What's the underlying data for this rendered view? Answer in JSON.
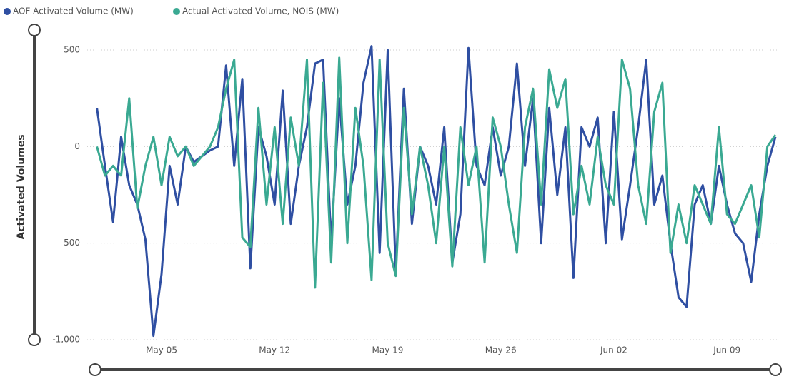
{
  "chart_data": {
    "type": "line",
    "y_label": "Activated Volumes",
    "categories": [
      null,
      null,
      null,
      null,
      null,
      null,
      null,
      null,
      "May 05",
      null,
      null,
      null,
      null,
      null,
      null,
      null,
      null,
      null,
      null,
      null,
      null,
      null,
      "May 12",
      null,
      null,
      null,
      null,
      null,
      null,
      null,
      null,
      null,
      null,
      null,
      null,
      null,
      "May 19",
      null,
      null,
      null,
      null,
      null,
      null,
      null,
      null,
      null,
      null,
      null,
      null,
      null,
      "May 26",
      null,
      null,
      null,
      null,
      null,
      null,
      null,
      null,
      null,
      null,
      null,
      null,
      null,
      "Jun 02",
      null,
      null,
      null,
      null,
      null,
      null,
      null,
      null,
      null,
      null,
      null,
      null,
      null,
      "Jun 09",
      null,
      null,
      null,
      null,
      null,
      null
    ],
    "series": [
      {
        "name": "AOF Activated Volume (MW)",
        "color": "#2f4fa2",
        "values": [
          200,
          -100,
          -390,
          50,
          -200,
          -300,
          -480,
          -980,
          -660,
          -100,
          -300,
          0,
          -80,
          -50,
          -20,
          0,
          420,
          -100,
          350,
          -630,
          100,
          -50,
          -300,
          290,
          -400,
          -100,
          100,
          430,
          450,
          -500,
          250,
          -300,
          -100,
          330,
          520,
          -550,
          500,
          -650,
          300,
          -400,
          0,
          -100,
          -300,
          100,
          -600,
          -350,
          510,
          -100,
          -200,
          100,
          -150,
          0,
          430,
          -100,
          250,
          -500,
          200,
          -250,
          100,
          -680,
          100,
          0,
          150,
          -500,
          180,
          -480,
          -200,
          100,
          450,
          -300,
          -150,
          -500,
          -780,
          -830,
          -300,
          -200,
          -400,
          -100,
          -300,
          -450,
          -500,
          -700,
          -350,
          -100,
          50
        ]
      },
      {
        "name": "Actual Activated Volume, NOIS (MW)",
        "color": "#3aa992",
        "values": [
          0,
          -150,
          -100,
          -150,
          250,
          -320,
          -100,
          50,
          -200,
          50,
          -50,
          0,
          -100,
          -50,
          0,
          100,
          300,
          450,
          -470,
          -520,
          200,
          -300,
          100,
          -400,
          150,
          -100,
          450,
          -730,
          330,
          -600,
          460,
          -500,
          200,
          -100,
          -690,
          450,
          -500,
          -670,
          200,
          -350,
          0,
          -200,
          -500,
          0,
          -620,
          100,
          -200,
          0,
          -600,
          150,
          0,
          -300,
          -550,
          100,
          300,
          -300,
          400,
          200,
          350,
          -350,
          -100,
          -300,
          50,
          -200,
          -300,
          450,
          300,
          -200,
          -400,
          180,
          330,
          -550,
          -300,
          -500,
          -200,
          -300,
          -400,
          100,
          -350,
          -400,
          -300,
          -200,
          -470,
          0,
          60
        ]
      }
    ],
    "ylim": [
      -1000,
      550
    ],
    "yticks": [
      {
        "value": -1000,
        "label": "-1,000"
      },
      -500,
      0,
      500
    ],
    "grid": true
  }
}
